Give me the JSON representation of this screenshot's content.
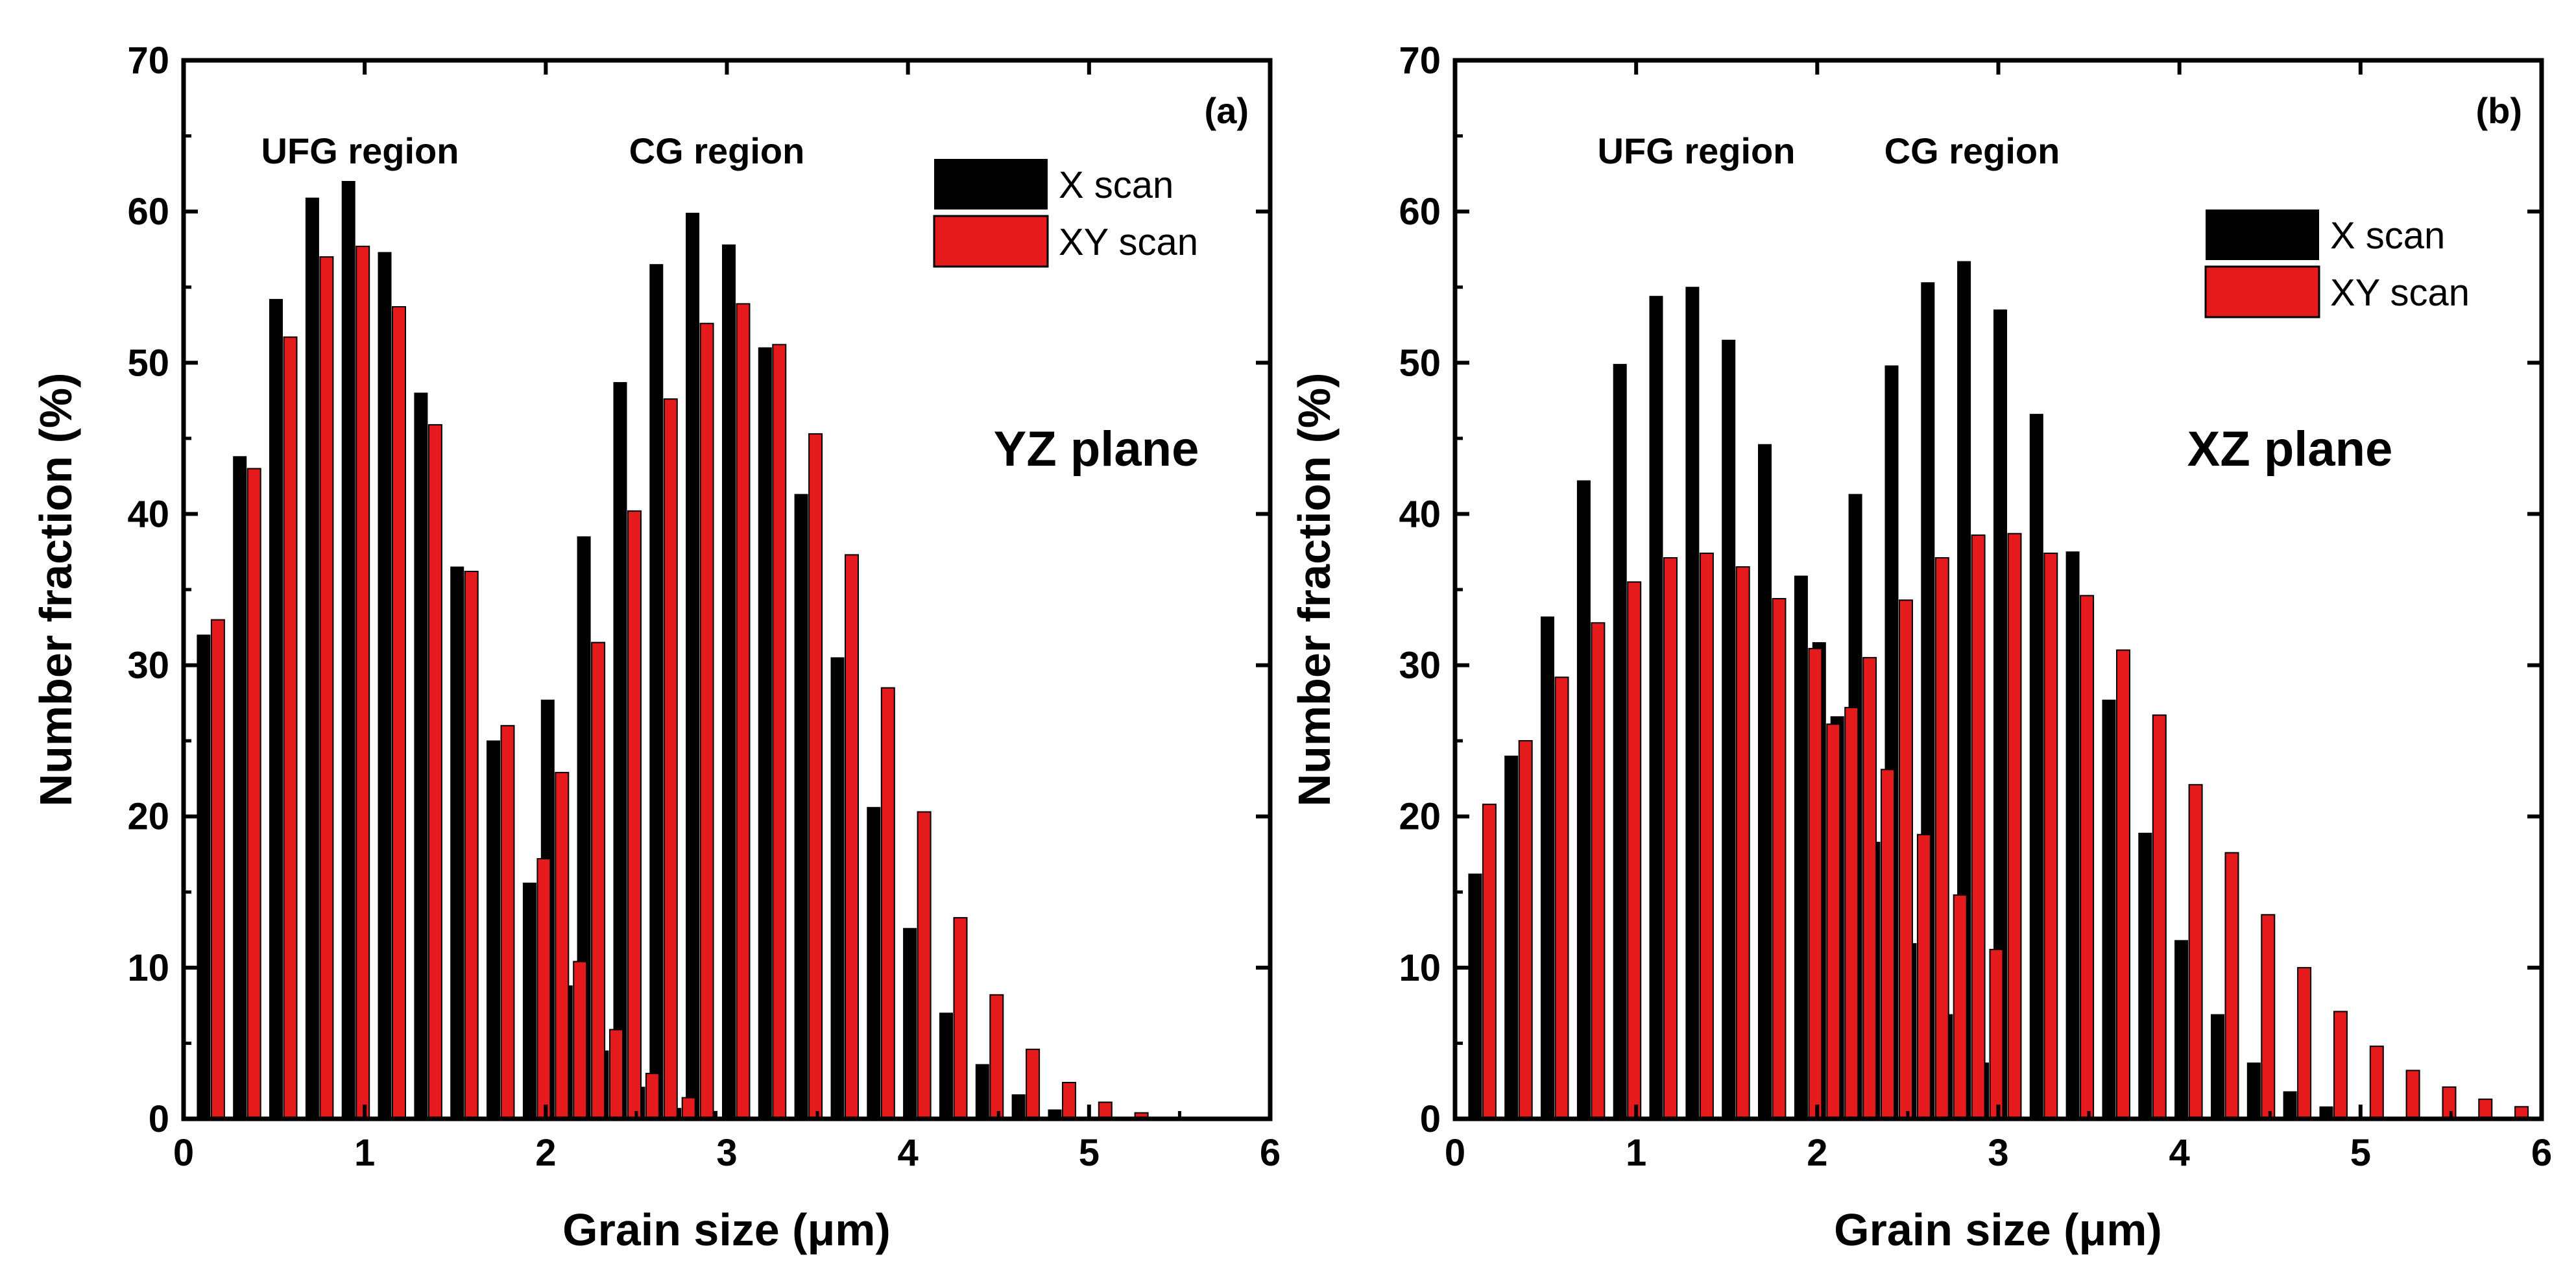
{
  "chart_data": [
    {
      "type": "bar",
      "panel": "(a)",
      "plane_label": "YZ plane",
      "annotations": [
        "UFG region",
        "CG region"
      ],
      "xlabel": "Grain size (μm)",
      "ylabel": "Number fraction (%)",
      "xlim": [
        0,
        6
      ],
      "ylim": [
        0,
        70
      ],
      "xticks": [
        0,
        1,
        2,
        3,
        4,
        5,
        6
      ],
      "yticks": [
        0,
        10,
        20,
        30,
        40,
        50,
        60,
        70
      ],
      "legend_position": "top-right",
      "series": [
        {
          "name": "X scan",
          "color": "#000000",
          "x": [
            0.15,
            0.35,
            0.55,
            0.75,
            0.95,
            1.15,
            1.35,
            1.55,
            1.75,
            1.95,
            2.05,
            2.15,
            2.25,
            2.35,
            2.45,
            2.55,
            2.65,
            2.75,
            2.85,
            2.95,
            3.05,
            3.25,
            3.45,
            3.65,
            3.85,
            4.05,
            4.25,
            4.45,
            4.65,
            4.85
          ],
          "values": [
            32,
            43.8,
            54.2,
            60.9,
            62,
            57.3,
            48,
            36.5,
            25,
            15.6,
            27.7,
            8.8,
            38.5,
            4.5,
            48.7,
            2.1,
            56.5,
            0.7,
            59.9,
            0.5,
            57.8,
            51,
            41.3,
            30.5,
            20.6,
            12.6,
            7,
            3.6,
            1.6,
            0.6
          ]
        },
        {
          "name": "XY scan",
          "color": "#e41a1c",
          "x": [
            0.15,
            0.35,
            0.55,
            0.75,
            0.95,
            1.15,
            1.35,
            1.55,
            1.75,
            1.95,
            2.05,
            2.15,
            2.25,
            2.35,
            2.45,
            2.55,
            2.65,
            2.75,
            2.85,
            3.05,
            3.25,
            3.45,
            3.65,
            3.85,
            4.05,
            4.25,
            4.45,
            4.65,
            4.85,
            5.05,
            5.25
          ],
          "values": [
            33,
            43,
            51.7,
            57,
            57.7,
            53.7,
            45.9,
            36.2,
            26,
            17.2,
            22.9,
            10.4,
            31.5,
            5.9,
            40.2,
            3,
            47.6,
            1.4,
            52.6,
            53.9,
            51.2,
            45.3,
            37.3,
            28.5,
            20.3,
            13.3,
            8.2,
            4.6,
            2.4,
            1.1,
            0.4
          ]
        }
      ]
    },
    {
      "type": "bar",
      "panel": "(b)",
      "plane_label": "XZ plane",
      "annotations": [
        "UFG region",
        "CG region"
      ],
      "xlabel": "Grain size (μm)",
      "ylabel": "Number fraction (%)",
      "xlim": [
        0,
        6
      ],
      "ylim": [
        0,
        70
      ],
      "xticks": [
        0,
        1,
        2,
        3,
        4,
        5,
        6
      ],
      "yticks": [
        0,
        10,
        20,
        30,
        40,
        50,
        60,
        70
      ],
      "legend_position": "top-right",
      "series": [
        {
          "name": "X scan",
          "color": "#000000",
          "x": [
            0.15,
            0.35,
            0.55,
            0.75,
            0.95,
            1.15,
            1.35,
            1.55,
            1.75,
            1.95,
            2.05,
            2.15,
            2.25,
            2.35,
            2.45,
            2.55,
            2.65,
            2.75,
            2.85,
            2.95,
            3.05,
            3.25,
            3.45,
            3.65,
            3.85,
            4.05,
            4.25,
            4.45,
            4.65,
            4.85
          ],
          "values": [
            16.2,
            24,
            33.2,
            42.2,
            49.9,
            54.4,
            55,
            51.5,
            44.6,
            35.9,
            31.5,
            26.6,
            41.3,
            18.3,
            49.8,
            11.6,
            55.3,
            6.9,
            56.7,
            3.7,
            53.5,
            46.6,
            37.5,
            27.7,
            18.9,
            11.8,
            6.9,
            3.7,
            1.8,
            0.8
          ]
        },
        {
          "name": "XY scan",
          "color": "#e41a1c",
          "x": [
            0.15,
            0.35,
            0.55,
            0.75,
            0.95,
            1.15,
            1.35,
            1.55,
            1.75,
            1.95,
            2.05,
            2.15,
            2.25,
            2.35,
            2.45,
            2.55,
            2.65,
            2.75,
            2.85,
            2.95,
            3.05,
            3.25,
            3.45,
            3.65,
            3.85,
            4.05,
            4.25,
            4.45,
            4.65,
            4.85,
            5.05,
            5.25,
            5.45,
            5.65,
            5.85
          ],
          "values": [
            20.8,
            25,
            29.2,
            32.8,
            35.5,
            37.1,
            37.4,
            36.5,
            34.4,
            31.1,
            26.1,
            27.2,
            30.5,
            23.1,
            34.3,
            18.8,
            37.1,
            14.8,
            38.6,
            11.2,
            38.7,
            37.4,
            34.6,
            31,
            26.7,
            22.1,
            17.6,
            13.5,
            10,
            7.1,
            4.8,
            3.2,
            2.1,
            1.3,
            0.8
          ]
        }
      ]
    }
  ]
}
